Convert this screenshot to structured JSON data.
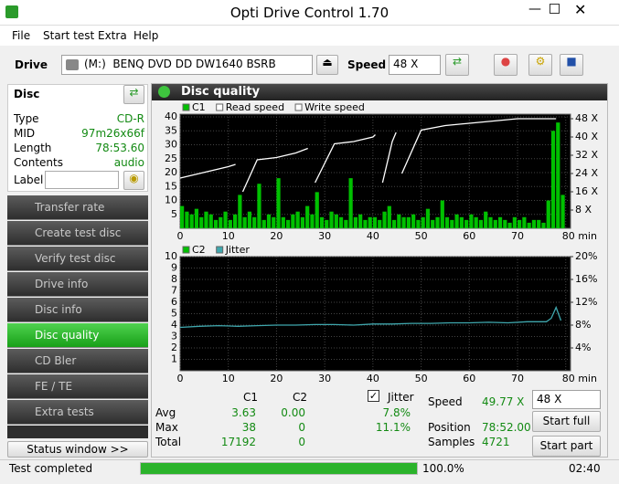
{
  "window": {
    "title": "Opti Drive Control 1.70"
  },
  "menu": [
    "File",
    "Start test",
    "Extra",
    "Help"
  ],
  "toolbar": {
    "drive_label": "Drive",
    "drive": "(M:)  BENQ DVD DD DW1640 BSRB",
    "speed_label": "Speed",
    "speed": "48 X"
  },
  "disc": {
    "title": "Disc",
    "rows": [
      [
        "Type",
        "CD-R"
      ],
      [
        "MID",
        "97m26x66f"
      ],
      [
        "Length",
        "78:53.60"
      ],
      [
        "Contents",
        "audio"
      ]
    ],
    "label": "Label"
  },
  "nav": [
    "Transfer rate",
    "Create test disc",
    "Verify test disc",
    "Drive info",
    "Disc info",
    "Disc quality",
    "CD Bler",
    "FE / TE",
    "Extra tests"
  ],
  "status_window": "Status window >>",
  "panel": {
    "title": "Disc quality"
  },
  "chart_data": [
    {
      "type": "combo",
      "xlim": [
        0,
        81
      ],
      "xticks": [
        0,
        10,
        20,
        30,
        40,
        50,
        60,
        70,
        {
          "value": 80,
          "label": "80 min"
        }
      ],
      "ylim": [
        0,
        41
      ],
      "yticks": [
        5,
        10,
        15,
        20,
        25,
        30,
        35,
        40
      ],
      "y2lim": [
        0,
        50
      ],
      "y2ticks": [
        {
          "value": 8,
          "label": "8 X"
        },
        {
          "value": 16,
          "label": "16 X"
        },
        {
          "value": 24,
          "label": "24 X"
        },
        {
          "value": 32,
          "label": "32 X"
        },
        {
          "value": 40,
          "label": "40 X"
        },
        {
          "value": 48,
          "label": "48 X"
        }
      ],
      "grid": true,
      "series": [
        {
          "name": "C1",
          "type": "bar",
          "color": "#00c000",
          "x": [
            0,
            1,
            2,
            3,
            4,
            5,
            6,
            7,
            8,
            9,
            10,
            11,
            12,
            13,
            14,
            15,
            16,
            17,
            18,
            19,
            20,
            21,
            22,
            23,
            24,
            25,
            26,
            27,
            28,
            29,
            30,
            31,
            32,
            33,
            34,
            35,
            36,
            37,
            38,
            39,
            40,
            41,
            42,
            43,
            44,
            45,
            46,
            47,
            48,
            49,
            50,
            51,
            52,
            53,
            54,
            55,
            56,
            57,
            58,
            59,
            60,
            61,
            62,
            63,
            64,
            65,
            66,
            67,
            68,
            69,
            70,
            71,
            72,
            73,
            74,
            75,
            76,
            77,
            78,
            79
          ],
          "values": [
            8,
            6,
            5,
            7,
            4,
            6,
            5,
            3,
            4,
            6,
            3,
            5,
            12,
            4,
            6,
            4,
            16,
            3,
            5,
            4,
            18,
            4,
            3,
            5,
            6,
            4,
            8,
            5,
            13,
            4,
            3,
            6,
            5,
            4,
            3,
            18,
            4,
            5,
            3,
            4,
            4,
            3,
            6,
            8,
            3,
            5,
            4,
            4,
            5,
            3,
            4,
            7,
            3,
            4,
            10,
            4,
            3,
            5,
            4,
            3,
            5,
            4,
            3,
            6,
            4,
            3,
            4,
            3,
            2,
            4,
            3,
            4,
            2,
            3,
            3,
            2,
            10,
            35,
            38,
            12
          ]
        },
        {
          "name": "Read speed",
          "type": "line",
          "axis": "y2",
          "color": "#ffffff",
          "x": [
            0,
            2,
            4,
            6,
            8,
            10,
            11.5,
            12,
            13,
            16,
            20,
            24,
            26.5,
            27,
            28,
            32,
            36,
            40,
            40.5,
            41,
            42,
            44,
            44.8,
            45,
            46,
            50,
            55,
            60,
            65,
            70,
            74,
            78
          ],
          "values": [
            22,
            23,
            24,
            25,
            26,
            27,
            28,
            null,
            16,
            30,
            31,
            33,
            35,
            null,
            20,
            37,
            38,
            40,
            41,
            null,
            20,
            38,
            42,
            null,
            24,
            43,
            45,
            46,
            47,
            48,
            48,
            48
          ]
        },
        {
          "name": "Write speed",
          "type": "line",
          "axis": "y2",
          "color": "#ffffff"
        }
      ]
    },
    {
      "type": "combo",
      "xlim": [
        0,
        81
      ],
      "xticks": [
        0,
        10,
        20,
        30,
        40,
        50,
        60,
        70,
        {
          "value": 80,
          "label": "80 min"
        }
      ],
      "ylim": [
        0,
        10
      ],
      "yticks": [
        1,
        2,
        3,
        4,
        5,
        6,
        7,
        8,
        9,
        10
      ],
      "y2lim": [
        0,
        20
      ],
      "y2ticks": [
        {
          "value": 4,
          "label": "4%"
        },
        {
          "value": 8,
          "label": "8%"
        },
        {
          "value": 12,
          "label": "12%"
        },
        {
          "value": 16,
          "label": "16%"
        },
        {
          "value": 20,
          "label": "20%"
        }
      ],
      "grid": true,
      "series": [
        {
          "name": "C2",
          "type": "bar",
          "color": "#00c000"
        },
        {
          "name": "Jitter",
          "type": "line",
          "axis": "y2",
          "color": "#3fa7ad",
          "x": [
            0,
            4,
            8,
            12,
            16,
            20,
            24,
            28,
            32,
            36,
            40,
            44,
            48,
            52,
            56,
            60,
            64,
            68,
            72,
            76,
            77,
            78,
            79
          ],
          "values": [
            7.6,
            7.8,
            7.9,
            7.8,
            7.9,
            8.0,
            8.0,
            8.1,
            8.1,
            8.0,
            8.2,
            8.2,
            8.3,
            8.3,
            8.4,
            8.4,
            8.5,
            8.4,
            8.6,
            8.6,
            9.2,
            11.1,
            8.8
          ]
        }
      ]
    }
  ],
  "stats": {
    "headers": [
      "C1",
      "C2",
      "Jitter"
    ],
    "rows": [
      [
        "Avg",
        "3.63",
        "0.00",
        "7.8%"
      ],
      [
        "Max",
        "38",
        "0",
        "11.1%"
      ],
      [
        "Total",
        "17192",
        "0"
      ]
    ],
    "speed_label": "Speed",
    "speed": "49.77 X",
    "speed_select": "48 X",
    "position_label": "Position",
    "position": "78:52.00",
    "samples_label": "Samples",
    "samples": "4721",
    "start_full": "Start full",
    "start_part": "Start part"
  },
  "status": {
    "text": "Test completed",
    "progress": "100.0%",
    "time": "02:40"
  }
}
